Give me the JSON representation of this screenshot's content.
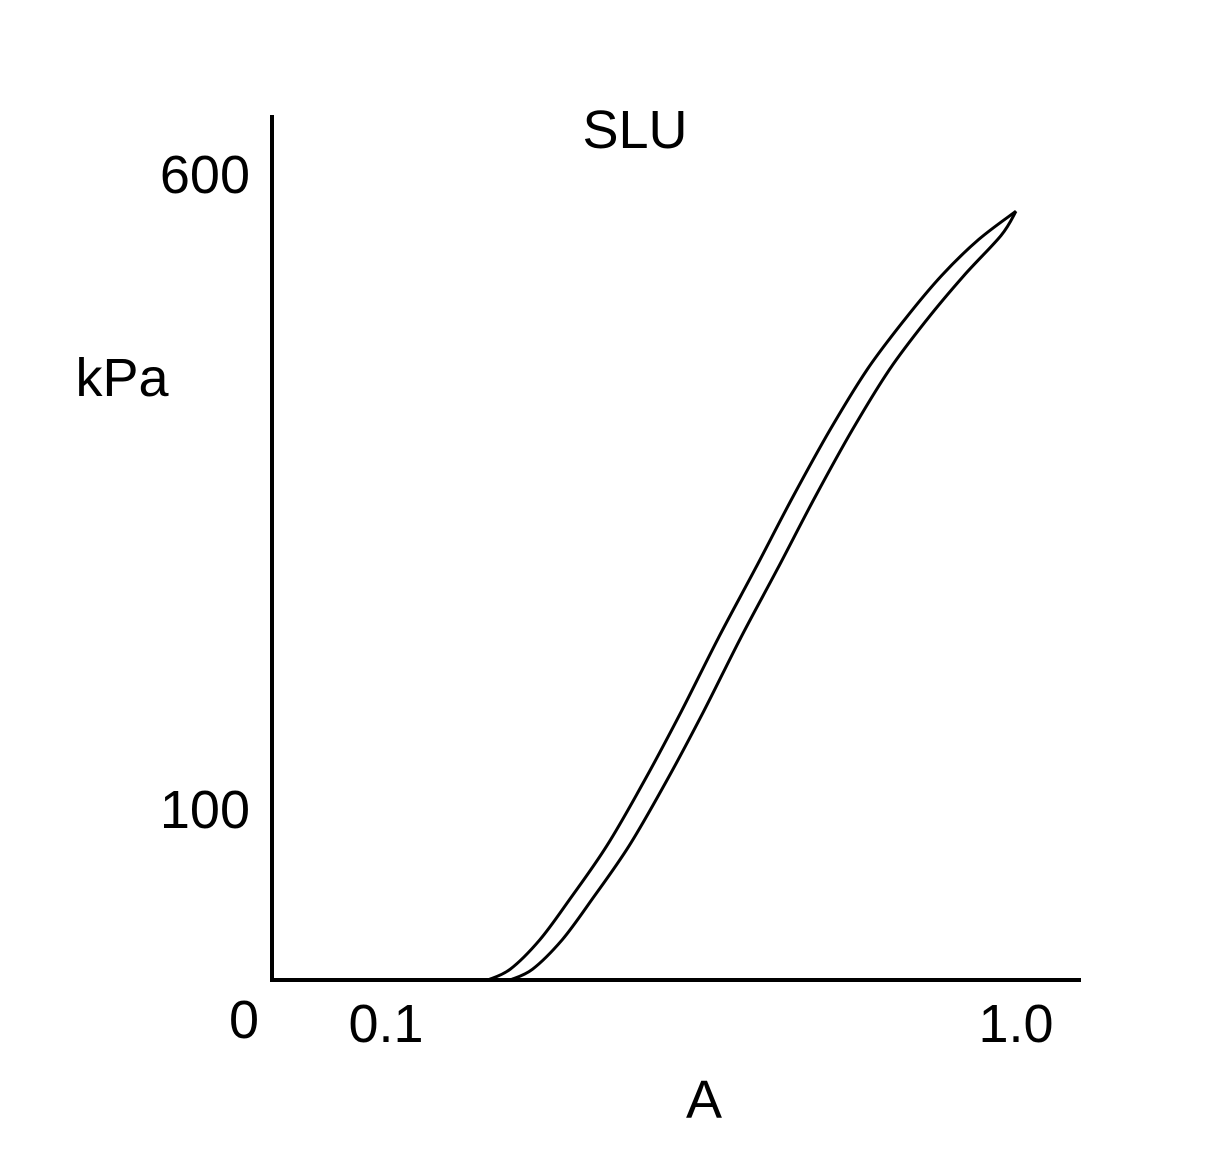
{
  "chart_data": {
    "type": "line",
    "title": "SLU",
    "xlabel": "A",
    "ylabel": "kPa",
    "x_ticks": [
      "0.1",
      "1.0"
    ],
    "y_ticks": [
      "100",
      "600"
    ],
    "origin_label": "0",
    "xlim": [
      0,
      1.1
    ],
    "ylim": [
      0,
      650
    ],
    "grid": false,
    "legend": "none",
    "line_color": "#000000",
    "series": [
      {
        "x": [
          0.29,
          0.32,
          0.36,
          0.4,
          0.45,
          0.5,
          0.55,
          0.6,
          0.65,
          0.7,
          0.75,
          0.8,
          0.85,
          0.9,
          0.95,
          1.0
        ],
        "y": [
          0,
          8,
          30,
          60,
          100,
          148,
          200,
          255,
          307,
          360,
          410,
          455,
          492,
          525,
          552,
          573
        ]
      },
      {
        "x": [
          0.32,
          0.35,
          0.39,
          0.43,
          0.48,
          0.53,
          0.58,
          0.63,
          0.68,
          0.73,
          0.78,
          0.83,
          0.88,
          0.93,
          0.98,
          1.0
        ],
        "y": [
          0,
          8,
          30,
          60,
          100,
          148,
          200,
          255,
          307,
          360,
          410,
          455,
          492,
          525,
          555,
          573
        ]
      }
    ]
  }
}
